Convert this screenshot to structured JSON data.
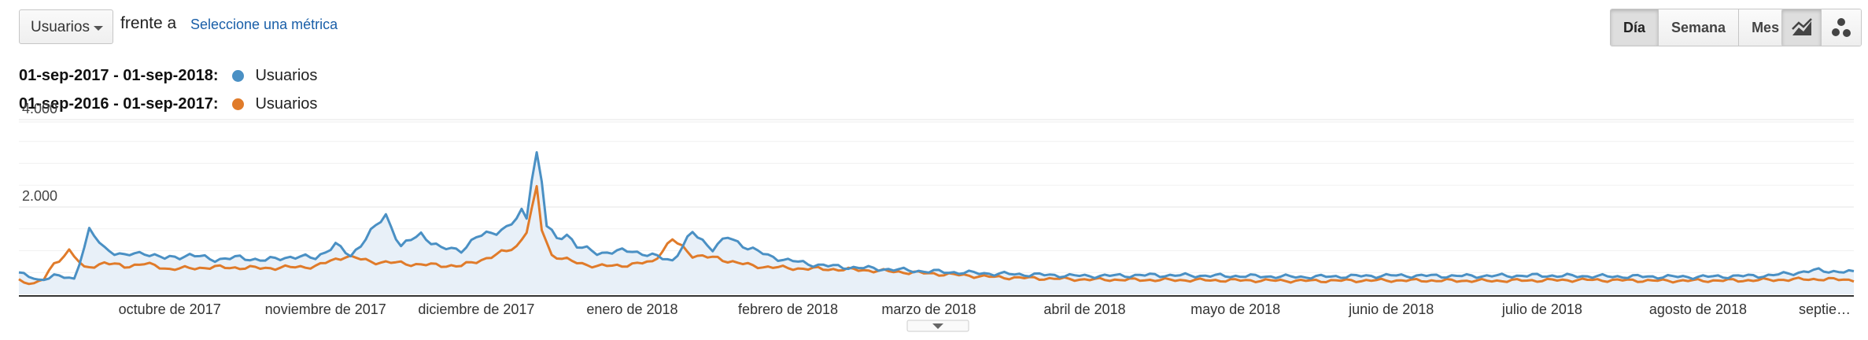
{
  "controls": {
    "metric_select": "Usuarios",
    "compare_text": "frente a",
    "select_metric_link": "Seleccione una métrica",
    "period_buttons": [
      "Día",
      "Semana",
      "Mes"
    ],
    "active_period": "Día"
  },
  "legend": [
    {
      "range": "01-sep-2017 - 01-sep-2018:",
      "name": "Usuarios",
      "color": "#4a90c4"
    },
    {
      "range": "01-sep-2016 - 01-sep-2017:",
      "name": "Usuarios",
      "color": "#e07b2a"
    }
  ],
  "chart_data": {
    "type": "line",
    "y_ticks": [
      "4.000",
      "2.000"
    ],
    "ylim": [
      0,
      4250
    ],
    "x_tick_labels": [
      "octubre de 2017",
      "noviembre de 2017",
      "diciembre de 2017",
      "enero de 2018",
      "febrero de 2018",
      "marzo de 2018",
      "abril de 2018",
      "mayo de 2018",
      "junio de 2018",
      "julio de 2018",
      "agosto de 2018",
      "septie…"
    ],
    "grid": true,
    "area_fill_first_series": true,
    "series": [
      {
        "name": "Usuarios",
        "period": "01-sep-2017 - 01-sep-2018",
        "color": "#4a90c4",
        "anchors": [
          [
            "2017-09-01",
            480
          ],
          [
            "2017-09-05",
            330
          ],
          [
            "2017-09-08",
            420
          ],
          [
            "2017-09-12",
            360
          ],
          [
            "2017-09-15",
            1450
          ],
          [
            "2017-09-18",
            1060
          ],
          [
            "2017-09-22",
            880
          ],
          [
            "2017-09-26",
            960
          ],
          [
            "2017-09-30",
            820
          ],
          [
            "2017-10-05",
            900
          ],
          [
            "2017-10-10",
            800
          ],
          [
            "2017-10-15",
            840
          ],
          [
            "2017-10-20",
            780
          ],
          [
            "2017-10-25",
            860
          ],
          [
            "2017-10-30",
            840
          ],
          [
            "2017-11-03",
            1130
          ],
          [
            "2017-11-06",
            880
          ],
          [
            "2017-11-10",
            1420
          ],
          [
            "2017-11-13",
            1810
          ],
          [
            "2017-11-16",
            1100
          ],
          [
            "2017-11-20",
            1380
          ],
          [
            "2017-11-24",
            1050
          ],
          [
            "2017-11-28",
            1020
          ],
          [
            "2017-12-01",
            1300
          ],
          [
            "2017-12-05",
            1450
          ],
          [
            "2017-12-07",
            1530
          ],
          [
            "2017-12-09",
            1700
          ],
          [
            "2017-12-10",
            1880
          ],
          [
            "2017-12-11",
            1780
          ],
          [
            "2017-12-12",
            2700
          ],
          [
            "2017-12-13",
            3230
          ],
          [
            "2017-12-14",
            2580
          ],
          [
            "2017-12-15",
            1580
          ],
          [
            "2017-12-17",
            1250
          ],
          [
            "2017-12-19",
            1400
          ],
          [
            "2017-12-21",
            1100
          ],
          [
            "2017-12-25",
            950
          ],
          [
            "2018-01-01",
            1000
          ],
          [
            "2018-01-05",
            880
          ],
          [
            "2018-01-09",
            780
          ],
          [
            "2018-01-13",
            1410
          ],
          [
            "2018-01-17",
            1050
          ],
          [
            "2018-01-20",
            1300
          ],
          [
            "2018-01-24",
            1080
          ],
          [
            "2018-01-28",
            880
          ],
          [
            "2018-02-01",
            780
          ],
          [
            "2018-02-05",
            700
          ],
          [
            "2018-02-10",
            640
          ],
          [
            "2018-02-15",
            610
          ],
          [
            "2018-02-20",
            580
          ],
          [
            "2018-02-28",
            530
          ],
          [
            "2018-03-15",
            470
          ],
          [
            "2018-04-01",
            420
          ],
          [
            "2018-04-15",
            440
          ],
          [
            "2018-05-01",
            420
          ],
          [
            "2018-05-15",
            400
          ],
          [
            "2018-06-01",
            430
          ],
          [
            "2018-06-15",
            420
          ],
          [
            "2018-07-01",
            430
          ],
          [
            "2018-07-15",
            410
          ],
          [
            "2018-08-01",
            400
          ],
          [
            "2018-08-15",
            430
          ],
          [
            "2018-08-25",
            550
          ],
          [
            "2018-09-01",
            500
          ]
        ]
      },
      {
        "name": "Usuarios",
        "period": "01-sep-2016 - 01-sep-2017",
        "color": "#e07b2a",
        "anchors": [
          [
            "2017-09-01",
            330
          ],
          [
            "2017-09-04",
            240
          ],
          [
            "2017-09-06",
            350
          ],
          [
            "2017-09-08",
            700
          ],
          [
            "2017-09-11",
            1000
          ],
          [
            "2017-09-14",
            600
          ],
          [
            "2017-09-18",
            720
          ],
          [
            "2017-09-22",
            640
          ],
          [
            "2017-09-26",
            700
          ],
          [
            "2017-10-01",
            580
          ],
          [
            "2017-10-10",
            620
          ],
          [
            "2017-10-20",
            600
          ],
          [
            "2017-10-30",
            640
          ],
          [
            "2017-11-05",
            880
          ],
          [
            "2017-11-10",
            750
          ],
          [
            "2017-11-15",
            720
          ],
          [
            "2017-11-20",
            680
          ],
          [
            "2017-11-28",
            650
          ],
          [
            "2017-12-05",
            900
          ],
          [
            "2017-12-09",
            1100
          ],
          [
            "2017-12-11",
            1450
          ],
          [
            "2017-12-12",
            1900
          ],
          [
            "2017-12-13",
            2400
          ],
          [
            "2017-12-14",
            1500
          ],
          [
            "2017-12-16",
            900
          ],
          [
            "2017-12-20",
            750
          ],
          [
            "2017-12-25",
            640
          ],
          [
            "2018-01-01",
            680
          ],
          [
            "2018-01-05",
            750
          ],
          [
            "2018-01-09",
            1250
          ],
          [
            "2018-01-13",
            900
          ],
          [
            "2018-01-18",
            820
          ],
          [
            "2018-01-25",
            650
          ],
          [
            "2018-02-01",
            600
          ],
          [
            "2018-02-15",
            560
          ],
          [
            "2018-03-01",
            480
          ],
          [
            "2018-03-15",
            390
          ],
          [
            "2018-04-01",
            340
          ],
          [
            "2018-04-15",
            330
          ],
          [
            "2018-05-01",
            320
          ],
          [
            "2018-05-15",
            310
          ],
          [
            "2018-06-01",
            320
          ],
          [
            "2018-06-20",
            310
          ],
          [
            "2018-07-10",
            330
          ],
          [
            "2018-07-25",
            310
          ],
          [
            "2018-08-10",
            320
          ],
          [
            "2018-08-25",
            350
          ],
          [
            "2018-09-01",
            330
          ]
        ]
      }
    ]
  }
}
